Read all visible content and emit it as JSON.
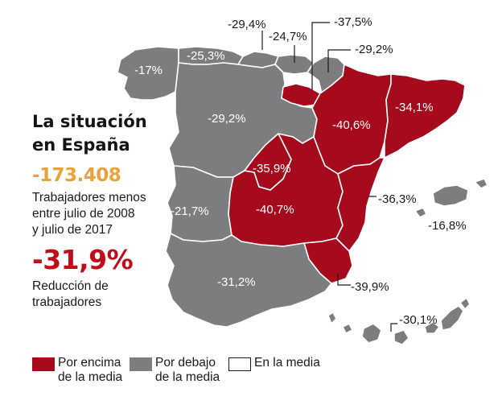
{
  "colors": {
    "above": "#a50b1c",
    "below": "#7b7d7f",
    "border": "#ffffff",
    "accent_red": "#c00d1c",
    "accent_yellow": "#e8a33a"
  },
  "title": {
    "line1": "La situación",
    "line2": "en España"
  },
  "workers_lost": {
    "value": "-173.408",
    "line1": "Trabajadores menos",
    "line2": "entre julio de 2008",
    "line3": "y julio de 2017"
  },
  "reduction": {
    "value": "-31,9%",
    "line1": "Reducción de",
    "line2": "trabajadores"
  },
  "regions": [
    {
      "id": "galicia",
      "label": "-17%",
      "category": "below",
      "icon": "region-shape"
    },
    {
      "id": "asturias",
      "label": "-25,3%",
      "category": "below",
      "icon": "region-shape"
    },
    {
      "id": "cantabria",
      "label": "-29,4%",
      "category": "below",
      "icon": "region-shape"
    },
    {
      "id": "pais-vasco",
      "label": "-24,7%",
      "category": "below",
      "icon": "region-shape"
    },
    {
      "id": "la-rioja",
      "label": "-37,5%",
      "category": "above",
      "icon": "region-shape"
    },
    {
      "id": "navarra",
      "label": "-29,2%",
      "category": "below",
      "icon": "region-shape"
    },
    {
      "id": "castilla-leon",
      "label": "-29,2%",
      "category": "below",
      "icon": "region-shape"
    },
    {
      "id": "aragon",
      "label": "-40,6%",
      "category": "above",
      "icon": "region-shape"
    },
    {
      "id": "cataluna",
      "label": "-34,1%",
      "category": "above",
      "icon": "region-shape"
    },
    {
      "id": "madrid",
      "label": "-35,9%",
      "category": "above",
      "icon": "region-shape"
    },
    {
      "id": "castilla-la-mancha",
      "label": "-40,7%",
      "category": "above",
      "icon": "region-shape"
    },
    {
      "id": "extremadura",
      "label": "-21,7%",
      "category": "below",
      "icon": "region-shape"
    },
    {
      "id": "valencia",
      "label": "-36,3%",
      "category": "above",
      "icon": "region-shape"
    },
    {
      "id": "baleares",
      "label": "-16,8%",
      "category": "below",
      "icon": "region-shape"
    },
    {
      "id": "andalucia",
      "label": "-31,2%",
      "category": "below",
      "icon": "region-shape"
    },
    {
      "id": "murcia",
      "label": "-39,9%",
      "category": "above",
      "icon": "region-shape"
    },
    {
      "id": "canarias",
      "label": "-30,1%",
      "category": "below",
      "icon": "region-shape"
    }
  ],
  "legend": {
    "above": {
      "line1": "Por encima",
      "line2": "de la media"
    },
    "below": {
      "line1": "Por debajo",
      "line2": "de la media"
    },
    "average": {
      "line1": "En la media"
    }
  }
}
